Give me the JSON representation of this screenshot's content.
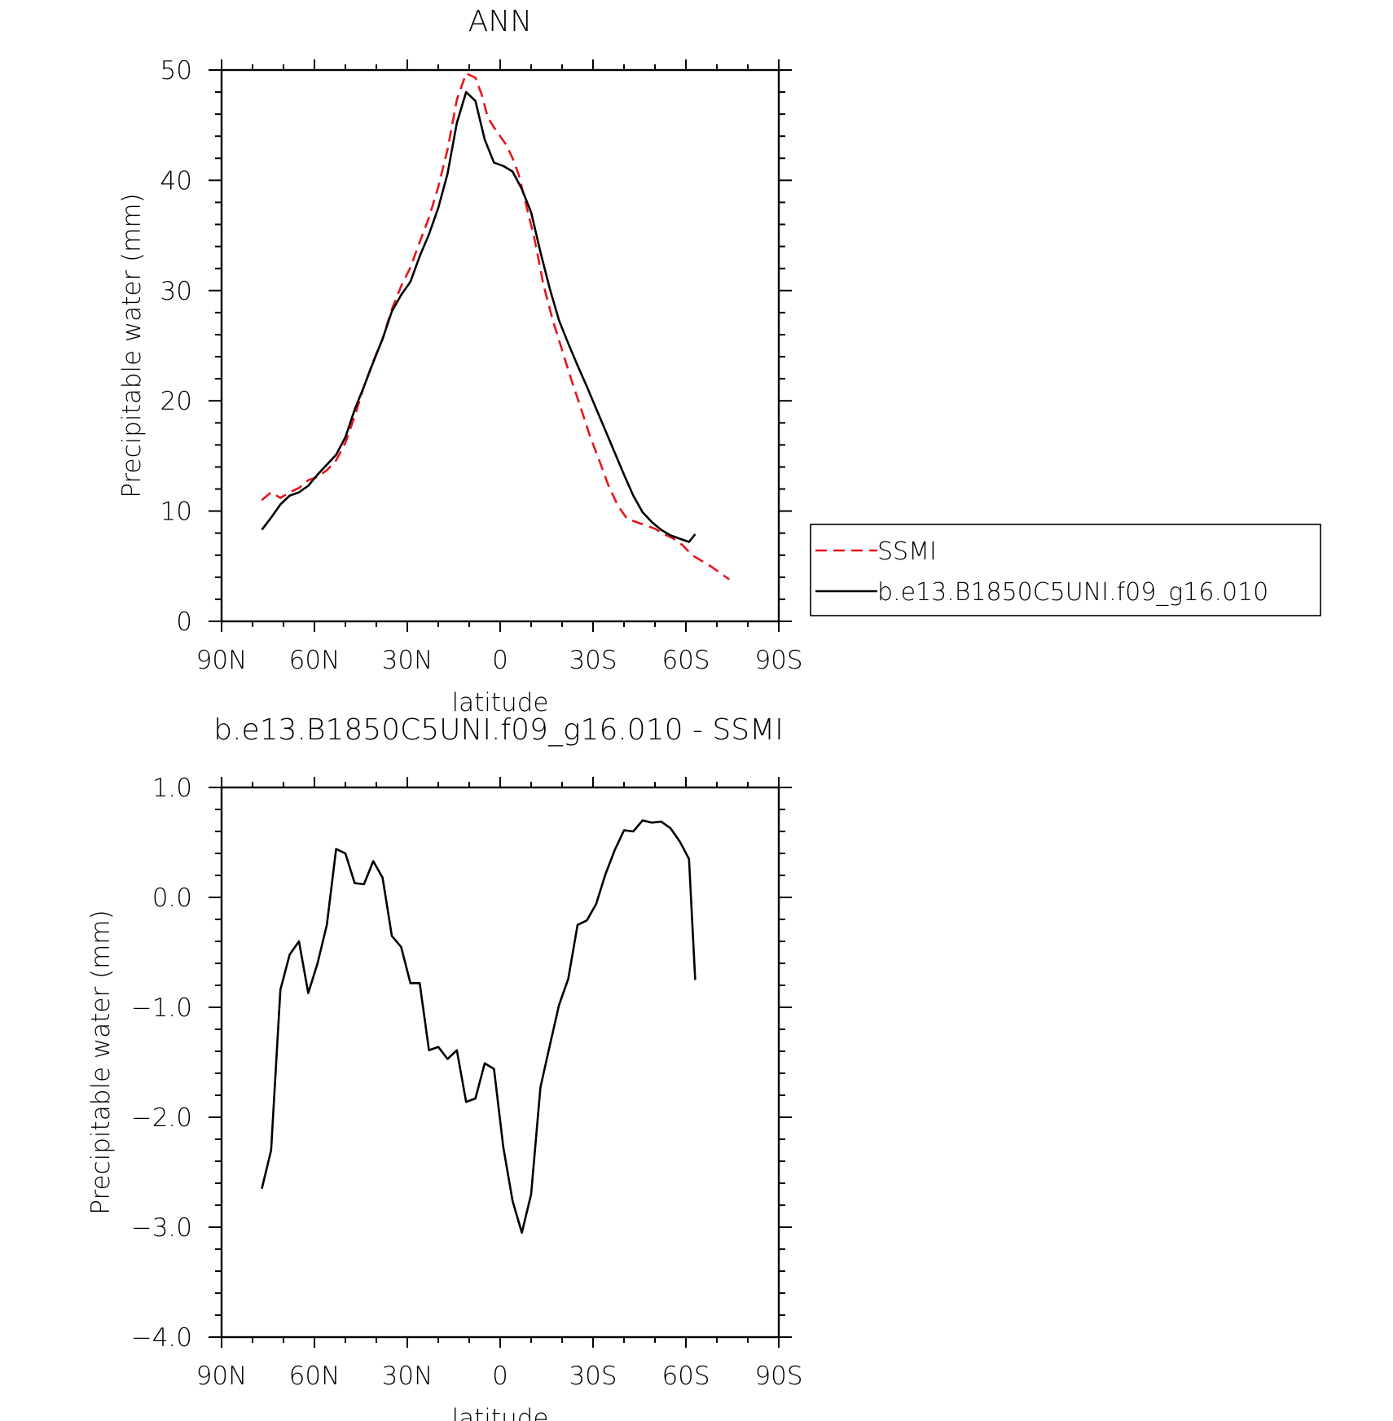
{
  "chart_data": [
    {
      "type": "line",
      "title": "ANN",
      "xlabel": "latitude",
      "ylabel": "Precipitable water (mm)",
      "xlim": [
        90,
        -90
      ],
      "ylim": [
        0,
        50
      ],
      "x_ticks": [
        90,
        60,
        30,
        0,
        -30,
        -60,
        -90
      ],
      "x_tick_labels": [
        "90N",
        "60N",
        "30N",
        "0",
        "30S",
        "60S",
        "90S"
      ],
      "y_ticks": [
        0,
        10,
        20,
        30,
        40,
        50
      ],
      "y_tick_labels": [
        "0",
        "10",
        "20",
        "30",
        "40",
        "50"
      ],
      "legend_placement": "right",
      "series": [
        {
          "name": "SSMI",
          "color": "#e8141c",
          "dash": "dashed",
          "x": [
            77,
            74,
            71,
            68,
            65,
            62,
            59,
            56,
            53,
            50,
            47,
            44,
            41,
            38,
            35,
            32,
            29,
            26,
            23,
            20,
            17,
            14,
            11,
            8,
            6,
            4,
            2,
            0,
            -2,
            -4,
            -6,
            -8,
            -11,
            -14,
            -17,
            -20,
            -23,
            -26,
            -29,
            -32,
            -35,
            -38,
            -41,
            -44,
            -47,
            -50,
            -53,
            -56,
            -59,
            -62,
            -65,
            -68,
            -71,
            -74
          ],
          "values": [
            11,
            11.7,
            11.2,
            11.7,
            12.1,
            12.8,
            13.1,
            13.7,
            14.6,
            16.2,
            18.6,
            21.3,
            23.6,
            25.6,
            28.3,
            30.4,
            32.1,
            34.4,
            36.6,
            39.4,
            42.8,
            47.3,
            49.7,
            49.3,
            47.8,
            45.7,
            44.8,
            44,
            43.2,
            42,
            40.5,
            38.2,
            34.8,
            30.5,
            27.3,
            24.6,
            21.9,
            19.4,
            16.8,
            14.6,
            12.3,
            10.5,
            9.3,
            9.0,
            8.7,
            8.4,
            7.9,
            7.5,
            6.9,
            6.0,
            5.5,
            5.0,
            4.4,
            3.8
          ]
        },
        {
          "name": "b.e13.B1850C5UNI.f09_g16.010",
          "color": "#000000",
          "dash": "solid",
          "x": [
            77,
            74,
            71,
            68,
            65,
            62,
            59,
            56,
            53,
            50,
            47,
            44,
            41,
            38,
            35,
            32,
            29,
            26,
            23,
            20,
            17,
            14,
            11,
            8,
            5,
            2,
            -1,
            -4,
            -7,
            -10,
            -13,
            -16,
            -19,
            -22,
            -25,
            -28,
            -31,
            -34,
            -37,
            -40,
            -43,
            -46,
            -49,
            -52,
            -55,
            -58,
            -61,
            -63
          ],
          "values": [
            8.3,
            9.4,
            10.6,
            11.4,
            11.7,
            12.3,
            13.3,
            14.2,
            15.1,
            16.7,
            19.2,
            21.3,
            23.5,
            25.6,
            28.1,
            29.6,
            30.8,
            33.1,
            35.1,
            37.5,
            40.6,
            45.2,
            48.0,
            47.2,
            43.7,
            41.6,
            41.3,
            40.8,
            39.2,
            37.1,
            33.5,
            30.2,
            27.3,
            25.2,
            23.2,
            21.3,
            19.3,
            17.3,
            15.3,
            13.3,
            11.4,
            9.9,
            9.0,
            8.3,
            7.8,
            7.5,
            7.2,
            7.9
          ]
        }
      ]
    },
    {
      "type": "line",
      "title": "b.e13.B1850C5UNI.f09_g16.010 - SSMI",
      "xlabel": "latitude",
      "ylabel": "Precipitable water (mm)",
      "xlim": [
        90,
        -90
      ],
      "ylim": [
        -4.0,
        1.0
      ],
      "x_ticks": [
        90,
        60,
        30,
        0,
        -30,
        -60,
        -90
      ],
      "x_tick_labels": [
        "90N",
        "60N",
        "30N",
        "0",
        "30S",
        "60S",
        "90S"
      ],
      "y_ticks": [
        -4.0,
        -3.0,
        -2.0,
        -1.0,
        0.0,
        1.0
      ],
      "y_tick_labels": [
        "-4.0",
        "-3.0",
        "-2.0",
        "-1.0",
        "0.0",
        "1.0"
      ],
      "series": [
        {
          "color": "#000000",
          "dash": "solid",
          "x": [
            77,
            74,
            71,
            68,
            65,
            62,
            59,
            56,
            53,
            50,
            47,
            44,
            41,
            38,
            35,
            32,
            29,
            26,
            23,
            20,
            17,
            14,
            11,
            8,
            5,
            2,
            -1,
            -4,
            -7,
            -10,
            -13,
            -16,
            -19,
            -22,
            -25,
            -28,
            -31,
            -34,
            -37,
            -40,
            -43,
            -46,
            -49,
            -52,
            -55,
            -58,
            -61,
            -63
          ],
          "values": [
            -2.65,
            -2.3,
            -0.84,
            -0.52,
            -0.4,
            -0.87,
            -0.6,
            -0.25,
            0.44,
            0.4,
            0.13,
            0.12,
            0.33,
            0.18,
            -0.35,
            -0.45,
            -0.78,
            -0.78,
            -1.39,
            -1.36,
            -1.47,
            -1.39,
            -1.86,
            -1.83,
            -1.51,
            -1.56,
            -2.27,
            -2.76,
            -3.05,
            -2.7,
            -1.73,
            -1.35,
            -0.98,
            -0.74,
            -0.25,
            -0.21,
            -0.06,
            0.21,
            0.43,
            0.61,
            0.6,
            0.7,
            0.68,
            0.69,
            0.63,
            0.51,
            0.35,
            -0.75
          ]
        }
      ]
    }
  ]
}
